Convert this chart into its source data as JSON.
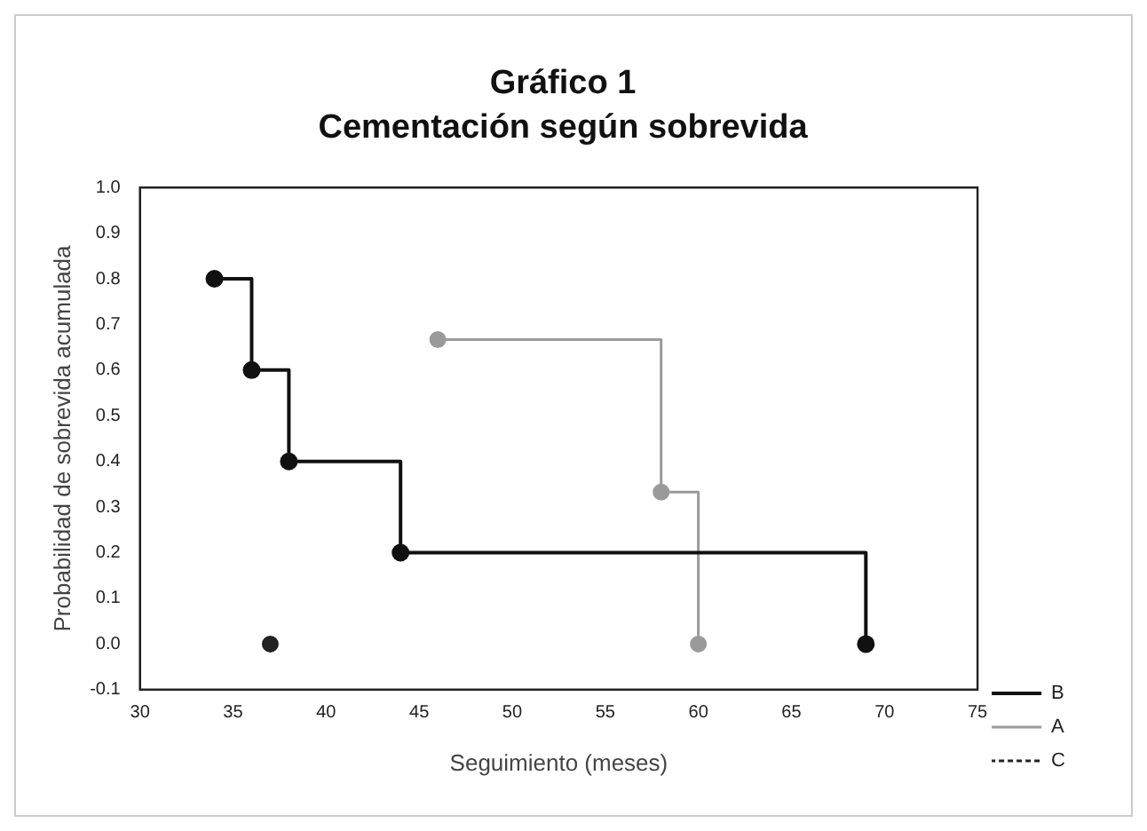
{
  "chart_data": {
    "type": "step",
    "title": "Gráfico 1",
    "subtitle": "Cementación según sobrevida",
    "xlabel": "Seguimiento (meses)",
    "ylabel": "Probabilidad de sobrevida acumulada",
    "series": [
      {
        "name": "B",
        "color": "#111111",
        "x": [
          34,
          36,
          38,
          44,
          69
        ],
        "values": [
          0.8,
          0.6,
          0.4,
          0.2,
          0
        ]
      },
      {
        "name": "A",
        "color": "#9a9a9a",
        "x": [
          46,
          58,
          60
        ],
        "values": [
          0.667,
          0.333,
          0
        ]
      },
      {
        "name": "C",
        "color": "#222222",
        "x": [
          37
        ],
        "values": [
          0
        ],
        "line_style": "dotted"
      }
    ],
    "xlim": [
      30,
      75
    ],
    "xticks": [
      30,
      35,
      40,
      45,
      50,
      55,
      60,
      65,
      70,
      75
    ],
    "ylim": [
      -0.1,
      1
    ],
    "yticks": [
      -0.1,
      {
        "value": 0,
        "label": "0.0"
      },
      0.1,
      0.2,
      0.3,
      0.4,
      0.5,
      0.6,
      0.7,
      0.8,
      0.9,
      {
        "value": 1,
        "label": "1.0"
      }
    ],
    "grid": false,
    "legend": "bottom right",
    "marker": "circle",
    "line_style": "solid"
  }
}
